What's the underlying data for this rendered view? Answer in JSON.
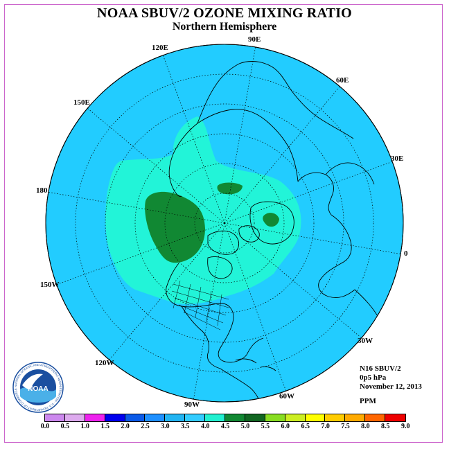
{
  "title": "NOAA SBUV/2 OZONE MIXING RATIO",
  "subtitle": "Northern Hemisphere",
  "lon_labels": {
    "e90": "90E",
    "e60": "60E",
    "e30": "30E",
    "e0": "0",
    "w30": "30W",
    "w60": "60W",
    "w90": "90W",
    "w120": "120W",
    "w150": "150W",
    "w180": "180",
    "e150": "150E",
    "e120": "120E"
  },
  "info": {
    "instrument": "N16 SBUV/2",
    "level": "0p5 hPa",
    "date": "November 12, 2013",
    "units": "PPM"
  },
  "logo": {
    "text": "NOAA",
    "ring_text": "NATIONAL OCEANIC AND ATMOSPHERIC ADMINISTRATION · U.S. DEPARTMENT OF COMMERCE"
  },
  "colorbar": {
    "labels": [
      "0.0",
      "0.5",
      "1.0",
      "1.5",
      "2.0",
      "2.5",
      "3.0",
      "3.5",
      "4.0",
      "4.5",
      "5.0",
      "5.5",
      "6.0",
      "6.5",
      "7.0",
      "7.5",
      "8.0",
      "8.5",
      "9.0"
    ],
    "colors": [
      "#cc88ee",
      "#ddaaee",
      "#ee22ee",
      "#0000ee",
      "#0a5ae8",
      "#1e90ff",
      "#22b4f2",
      "#33ccff",
      "#22f0d0",
      "#118833",
      "#116622",
      "#88dd22",
      "#ccee22",
      "#ffff00",
      "#ffcc00",
      "#ffaa00",
      "#ff6600",
      "#ee0000",
      "#885533"
    ]
  },
  "map_colors": {
    "ocean_background": "#22ccff",
    "band_3_5_4_0": "#22f4d8",
    "band_4_5_5_0": "#118833"
  }
}
